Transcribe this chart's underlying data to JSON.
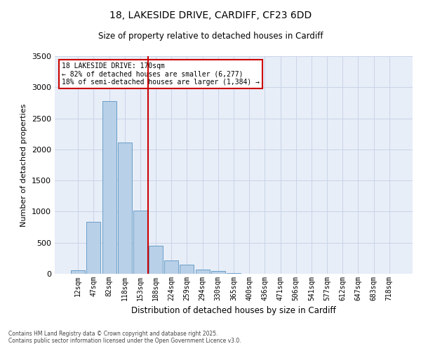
{
  "title1": "18, LAKESIDE DRIVE, CARDIFF, CF23 6DD",
  "title2": "Size of property relative to detached houses in Cardiff",
  "xlabel": "Distribution of detached houses by size in Cardiff",
  "ylabel": "Number of detached properties",
  "categories": [
    "12sqm",
    "47sqm",
    "82sqm",
    "118sqm",
    "153sqm",
    "188sqm",
    "224sqm",
    "259sqm",
    "294sqm",
    "330sqm",
    "365sqm",
    "400sqm",
    "436sqm",
    "471sqm",
    "506sqm",
    "541sqm",
    "577sqm",
    "612sqm",
    "647sqm",
    "683sqm",
    "718sqm"
  ],
  "values": [
    60,
    840,
    2780,
    2110,
    1020,
    450,
    210,
    145,
    65,
    40,
    15,
    5,
    5,
    5,
    0,
    0,
    0,
    0,
    0,
    0,
    0
  ],
  "bar_color": "#b8d0e8",
  "bar_edge_color": "#6a9fc8",
  "vline_x": 4.5,
  "vline_color": "#cc0000",
  "annotation_title": "18 LAKESIDE DRIVE: 170sqm",
  "annotation_line1": "← 82% of detached houses are smaller (6,277)",
  "annotation_line2": "18% of semi-detached houses are larger (1,384) →",
  "annotation_box_color": "#cc0000",
  "ylim": [
    0,
    3500
  ],
  "yticks": [
    0,
    500,
    1000,
    1500,
    2000,
    2500,
    3000,
    3500
  ],
  "grid_color": "#c8d4e8",
  "bg_color": "#e8eef8",
  "footer1": "Contains HM Land Registry data © Crown copyright and database right 2025.",
  "footer2": "Contains public sector information licensed under the Open Government Licence v3.0."
}
